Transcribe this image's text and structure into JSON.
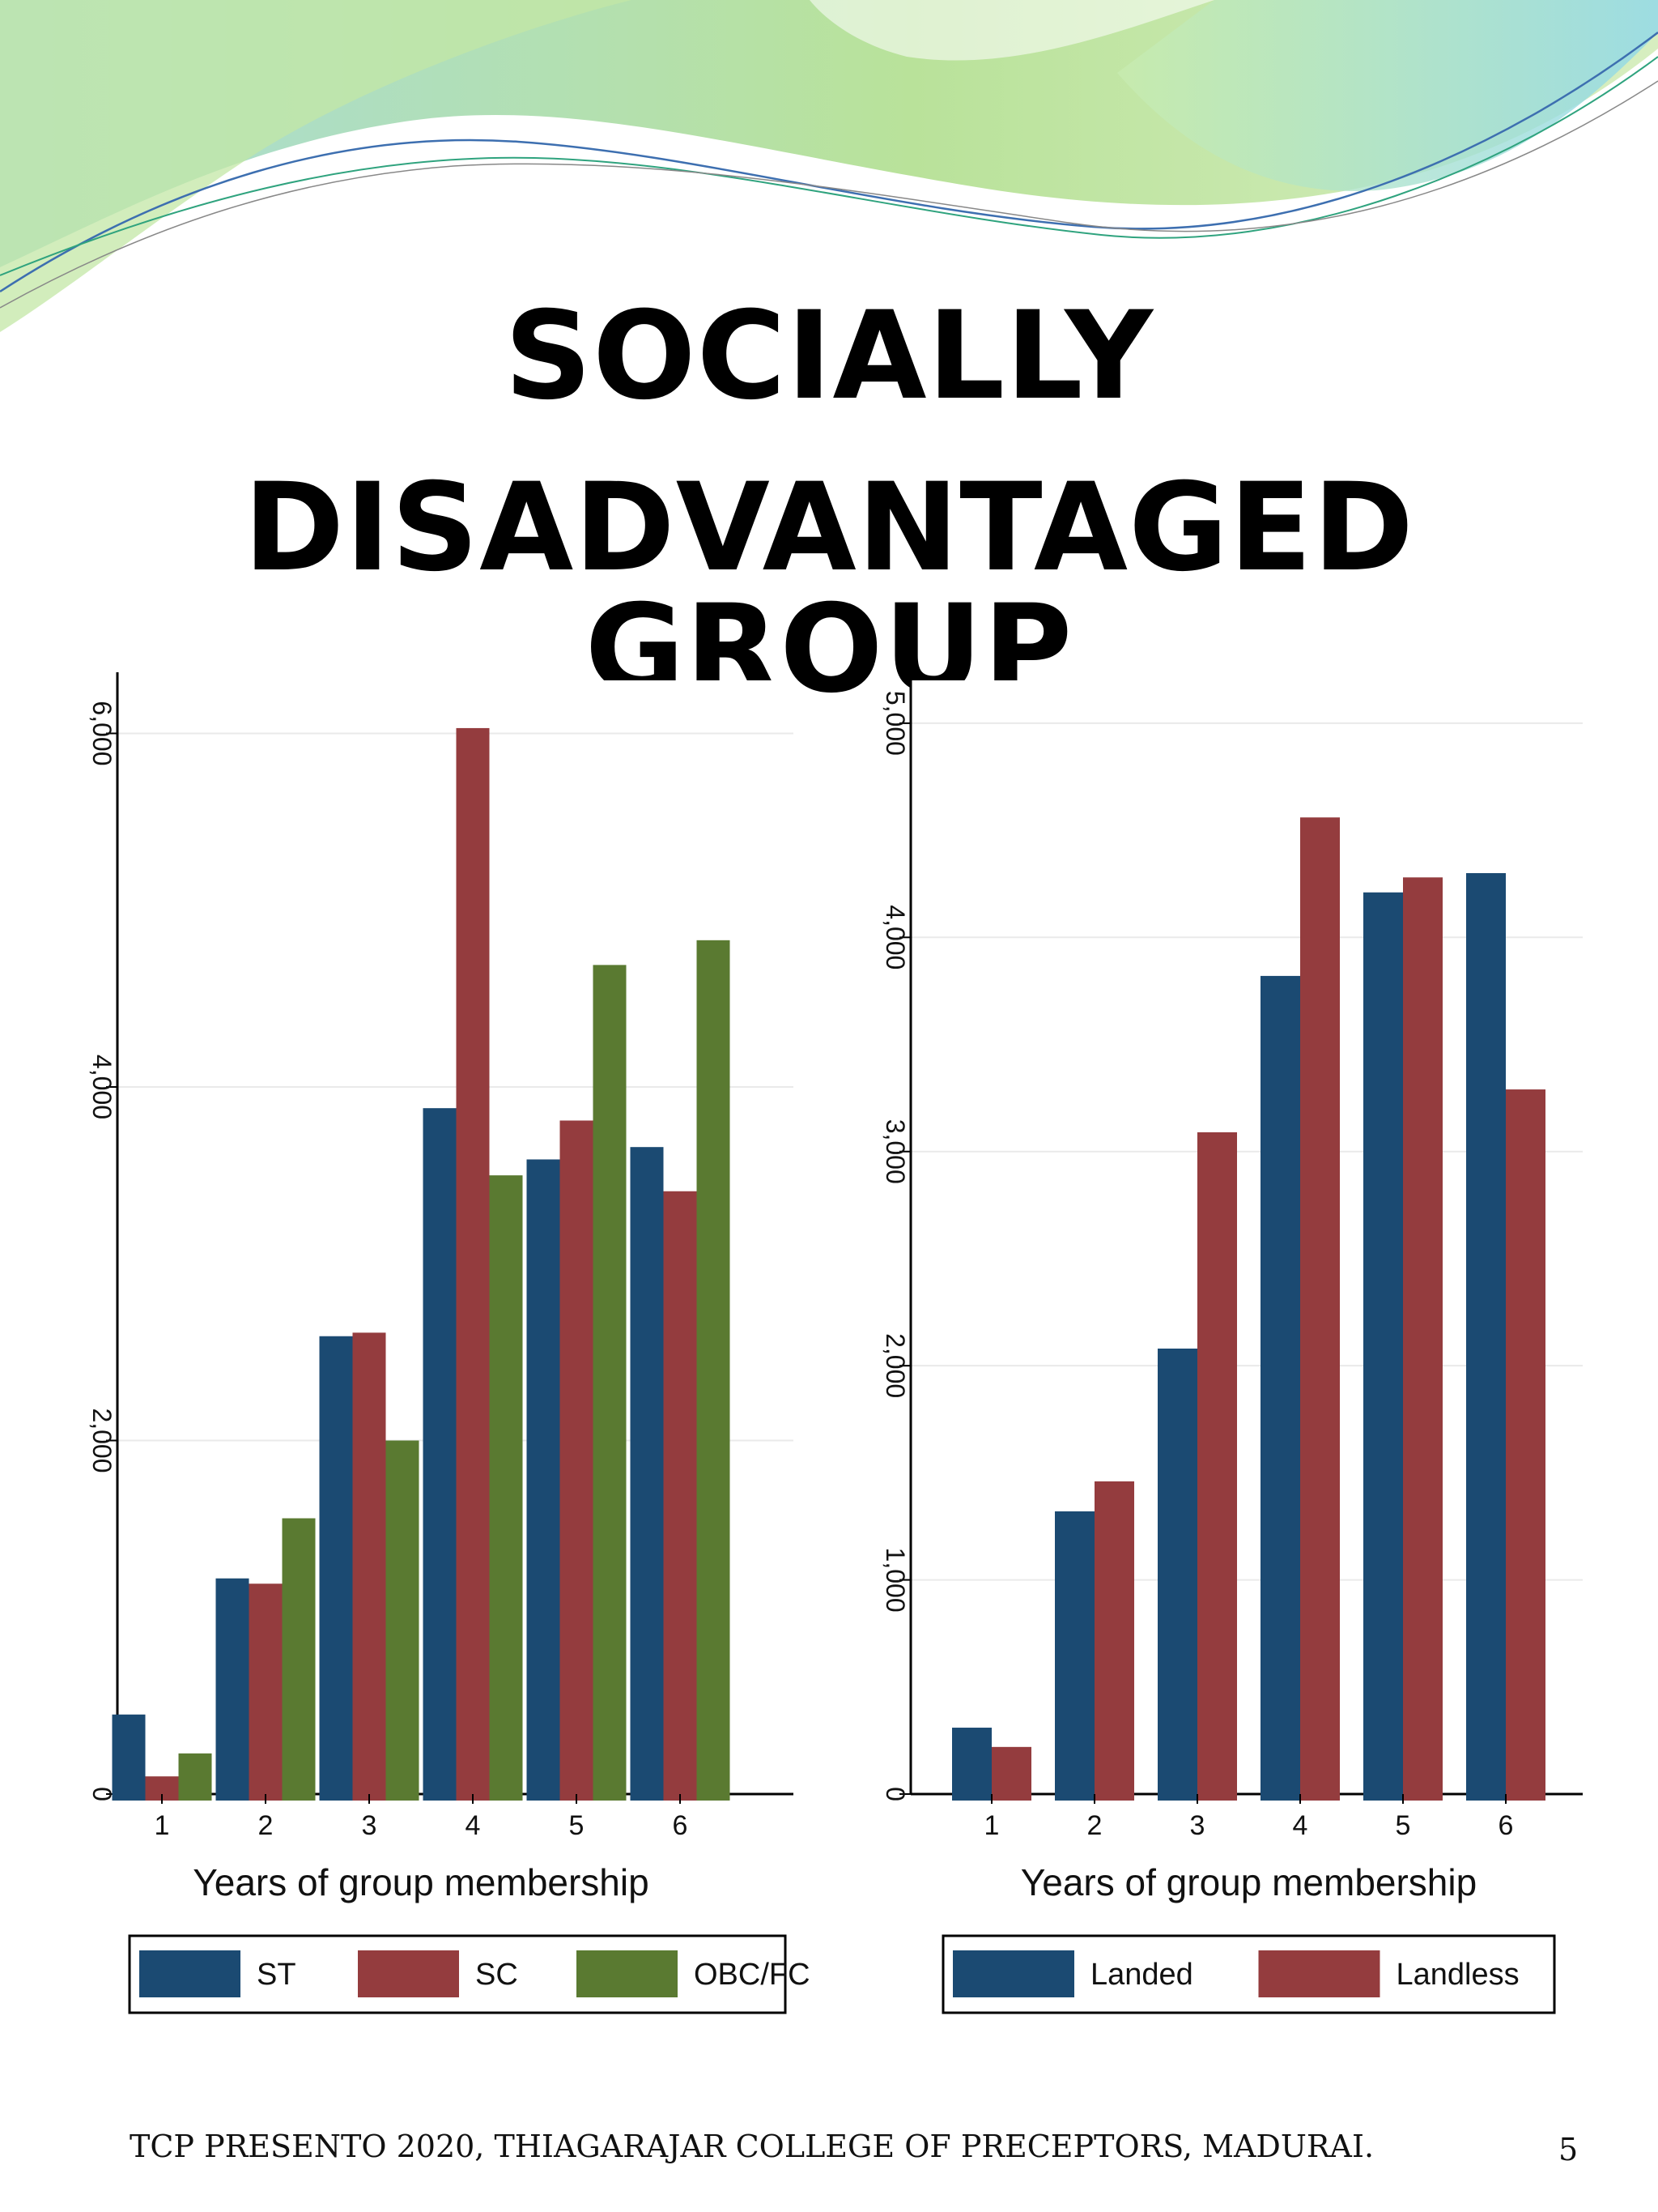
{
  "title": {
    "line1": "SOCIALLY",
    "line2": "DISADVANTAGED GROUP"
  },
  "footer": {
    "text": "TCP PRESENTO 2020, THIAGARAJAR COLLEGE OF PRECEPTORS, MADURAI.",
    "page_number": "5"
  },
  "colors": {
    "navy": "#1b4a72",
    "red": "#943c3e",
    "green": "#5a7a31",
    "wave_green": "#b4de8a",
    "wave_blue": "#8fd3e6"
  },
  "chart_data": [
    {
      "type": "bar",
      "categories": [
        "1",
        "2",
        "3",
        "4",
        "5",
        "6"
      ],
      "series": [
        {
          "name": "ST",
          "color": "#1b4a72",
          "values": [
            450,
            1220,
            2590,
            3880,
            3590,
            3660
          ]
        },
        {
          "name": "SC",
          "color": "#943c3e",
          "values": [
            100,
            1190,
            2610,
            6030,
            3810,
            3410
          ]
        },
        {
          "name": "OBC/FC",
          "color": "#5a7a31",
          "values": [
            230,
            1560,
            2000,
            3500,
            4690,
            4830
          ]
        }
      ],
      "xlabel": "Years of group membership",
      "ylabel": "",
      "ylim": [
        0,
        6300
      ],
      "yticks": [
        0,
        2000,
        4000,
        6000
      ],
      "ytick_labels": [
        "0",
        "2,000",
        "4,000",
        "6,000"
      ],
      "legend": "bottom"
    },
    {
      "type": "bar",
      "categories": [
        "1",
        "2",
        "3",
        "4",
        "5",
        "6"
      ],
      "series": [
        {
          "name": "Landed",
          "color": "#1b4a72",
          "values": [
            310,
            1320,
            2080,
            3820,
            4210,
            4300
          ]
        },
        {
          "name": "Landless",
          "color": "#943c3e",
          "values": [
            220,
            1460,
            3090,
            4560,
            4280,
            3290
          ]
        }
      ],
      "xlabel": "Years of group membership",
      "ylabel": "",
      "ylim": [
        0,
        5200
      ],
      "yticks": [
        0,
        1000,
        2000,
        3000,
        4000,
        5000
      ],
      "ytick_labels": [
        "0",
        "1,000",
        "2,000",
        "3,000",
        "4,000",
        "5,000"
      ],
      "legend": "bottom"
    }
  ]
}
